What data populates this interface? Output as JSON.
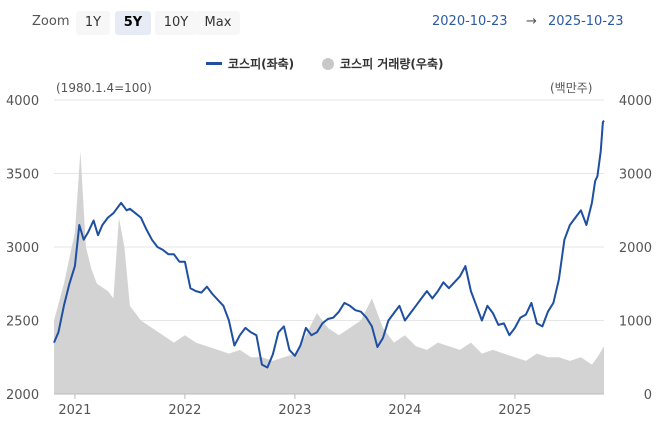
{
  "toolbar": {
    "zoom_label": "Zoom",
    "buttons": [
      "1Y",
      "5Y",
      "10Y",
      "Max"
    ],
    "active": "5Y",
    "range_from": "2020-10-23",
    "range_arrow": "→",
    "range_to": "2025-10-23"
  },
  "colors": {
    "index_line": "#1f4fa0",
    "volume_area": "#d3d3d3",
    "accent": "#2b5aa3"
  },
  "chart_data": {
    "type": "line",
    "legend": [
      "코스피(좌축)",
      "코스피 거래량(우축)"
    ],
    "left_axis_note": "(1980.1.4=100)",
    "right_axis_note": "(백만주)",
    "left_ticks": [
      "4000",
      "3500",
      "3000",
      "2500",
      "2000"
    ],
    "right_ticks": [
      "4000",
      "3000",
      "2000",
      "1000",
      "0"
    ],
    "x_ticks": [
      "2021",
      "2022",
      "2023",
      "2024",
      "2025"
    ],
    "ylim_left": [
      2000,
      4000
    ],
    "ylim_right": [
      0,
      4000
    ],
    "xlim": [
      2020.81,
      2025.81
    ],
    "series": [
      {
        "name": "코스피(좌축)",
        "axis": "left",
        "x": [
          2020.81,
          2020.85,
          2020.9,
          2020.95,
          2021.0,
          2021.04,
          2021.08,
          2021.12,
          2021.17,
          2021.21,
          2021.25,
          2021.3,
          2021.35,
          2021.42,
          2021.47,
          2021.5,
          2021.55,
          2021.6,
          2021.65,
          2021.7,
          2021.75,
          2021.8,
          2021.85,
          2021.9,
          2021.95,
          2022.0,
          2022.05,
          2022.1,
          2022.15,
          2022.2,
          2022.25,
          2022.3,
          2022.35,
          2022.4,
          2022.45,
          2022.5,
          2022.55,
          2022.6,
          2022.65,
          2022.7,
          2022.75,
          2022.8,
          2022.85,
          2022.9,
          2022.95,
          2023.0,
          2023.05,
          2023.1,
          2023.15,
          2023.2,
          2023.25,
          2023.3,
          2023.35,
          2023.4,
          2023.45,
          2023.5,
          2023.55,
          2023.6,
          2023.65,
          2023.7,
          2023.75,
          2023.8,
          2023.85,
          2023.9,
          2023.95,
          2024.0,
          2024.05,
          2024.1,
          2024.15,
          2024.2,
          2024.25,
          2024.3,
          2024.35,
          2024.4,
          2024.45,
          2024.5,
          2024.55,
          2024.6,
          2024.65,
          2024.7,
          2024.75,
          2024.8,
          2024.85,
          2024.9,
          2024.95,
          2025.0,
          2025.05,
          2025.1,
          2025.15,
          2025.2,
          2025.25,
          2025.3,
          2025.35,
          2025.4,
          2025.45,
          2025.5,
          2025.55,
          2025.6,
          2025.65,
          2025.7,
          2025.73,
          2025.75,
          2025.78,
          2025.8,
          2025.81
        ],
        "y": [
          2350,
          2420,
          2600,
          2750,
          2870,
          3150,
          3050,
          3100,
          3180,
          3080,
          3150,
          3200,
          3230,
          3300,
          3250,
          3260,
          3230,
          3200,
          3120,
          3050,
          3000,
          2980,
          2950,
          2950,
          2900,
          2900,
          2720,
          2700,
          2690,
          2730,
          2680,
          2640,
          2600,
          2500,
          2330,
          2400,
          2450,
          2420,
          2400,
          2200,
          2180,
          2270,
          2420,
          2460,
          2300,
          2260,
          2330,
          2450,
          2400,
          2420,
          2480,
          2510,
          2520,
          2560,
          2620,
          2600,
          2570,
          2560,
          2520,
          2460,
          2320,
          2380,
          2500,
          2550,
          2600,
          2500,
          2550,
          2600,
          2650,
          2700,
          2650,
          2700,
          2760,
          2720,
          2760,
          2800,
          2870,
          2700,
          2600,
          2500,
          2600,
          2550,
          2470,
          2480,
          2400,
          2450,
          2520,
          2540,
          2620,
          2480,
          2460,
          2560,
          2620,
          2780,
          3050,
          3150,
          3200,
          3250,
          3150,
          3300,
          3450,
          3480,
          3650,
          3850,
          3860
        ]
      },
      {
        "name": "코스피 거래량(우축)",
        "axis": "right",
        "x": [
          2020.81,
          2020.9,
          2021.0,
          2021.05,
          2021.1,
          2021.15,
          2021.2,
          2021.3,
          2021.35,
          2021.4,
          2021.45,
          2021.5,
          2021.6,
          2021.7,
          2021.8,
          2021.9,
          2022.0,
          2022.1,
          2022.2,
          2022.3,
          2022.4,
          2022.5,
          2022.6,
          2022.7,
          2022.8,
          2022.9,
          2023.0,
          2023.1,
          2023.2,
          2023.3,
          2023.4,
          2023.5,
          2023.6,
          2023.7,
          2023.8,
          2023.9,
          2024.0,
          2024.1,
          2024.2,
          2024.3,
          2024.4,
          2024.5,
          2024.6,
          2024.7,
          2024.8,
          2024.9,
          2025.0,
          2025.1,
          2025.2,
          2025.3,
          2025.4,
          2025.5,
          2025.6,
          2025.7,
          2025.75,
          2025.81
        ],
        "y": [
          1000,
          1500,
          2200,
          3300,
          2000,
          1700,
          1500,
          1400,
          1300,
          2400,
          2000,
          1200,
          1000,
          900,
          800,
          700,
          800,
          700,
          650,
          600,
          550,
          600,
          500,
          500,
          450,
          500,
          550,
          800,
          1100,
          900,
          800,
          900,
          1000,
          1300,
          900,
          700,
          800,
          650,
          600,
          700,
          650,
          600,
          700,
          550,
          600,
          550,
          500,
          450,
          550,
          500,
          500,
          450,
          500,
          400,
          500,
          650
        ]
      }
    ]
  }
}
